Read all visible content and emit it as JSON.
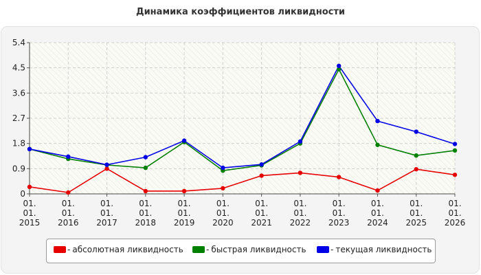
{
  "chart_data": {
    "type": "line",
    "title": "Динамика коэффициентов ликвидности",
    "xlabel": "",
    "ylabel": "",
    "x": [
      "01.\n01.\n2015",
      "01.\n01.\n2016",
      "01.\n01.\n2017",
      "01.\n01.\n2018",
      "01.\n01.\n2019",
      "01.\n01.\n2020",
      "01.\n01.\n2021",
      "01.\n01.\n2022",
      "01.\n01.\n2023",
      "01.\n01.\n2024",
      "01.\n01.\n2025",
      "01.\n01.\n2026"
    ],
    "yticks": [
      "0",
      "0.9",
      "1.8",
      "2.7",
      "3.6",
      "4.5",
      "5.4"
    ],
    "ylim": [
      0,
      5.4
    ],
    "grid": true,
    "legend_position": "bottom",
    "series": [
      {
        "name": "абсолютная ликвидность",
        "color": "#e60000",
        "values": [
          0.25,
          0.05,
          0.9,
          0.1,
          0.1,
          0.2,
          0.65,
          0.75,
          0.6,
          0.12,
          0.88,
          0.68
        ]
      },
      {
        "name": "быстрая ликвидность",
        "color": "#008000",
        "values": [
          1.6,
          1.25,
          1.03,
          0.93,
          1.85,
          0.83,
          1.02,
          1.8,
          4.45,
          1.75,
          1.37,
          1.55
        ]
      },
      {
        "name": "текущая ликвидность",
        "color": "#0000e6",
        "values": [
          1.6,
          1.33,
          1.04,
          1.31,
          1.9,
          0.93,
          1.05,
          1.87,
          4.57,
          2.6,
          2.22,
          1.78
        ]
      }
    ]
  }
}
